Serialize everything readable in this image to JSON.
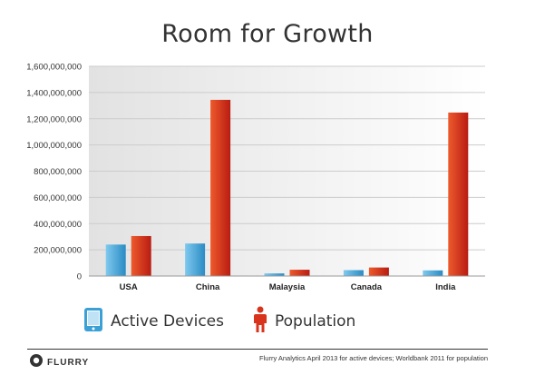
{
  "colors": {
    "active": "#3aa0d6",
    "population": "#d8331c",
    "grid": "#cccccc"
  },
  "legend": {
    "active_label": "Active Devices",
    "population_label": "Population"
  },
  "footer": {
    "logo": "FLURRY",
    "source": "Flurry Analytics April 2013 for active devices; Worldbank 2011 for population"
  },
  "chart_data": {
    "type": "bar",
    "title": "Room for Growth",
    "xlabel": "",
    "ylabel": "",
    "categories": [
      "USA",
      "China",
      "Malaysia",
      "Canada",
      "India"
    ],
    "series": [
      {
        "name": "Active Devices",
        "values": [
          240000000,
          248000000,
          20000000,
          45000000,
          43000000
        ]
      },
      {
        "name": "Population",
        "values": [
          305000000,
          1344000000,
          48000000,
          65000000,
          1247000000
        ]
      }
    ],
    "yticks": [
      {
        "value": 0,
        "label": "0"
      },
      {
        "value": 200000000,
        "label": "200,000,000"
      },
      {
        "value": 400000000,
        "label": "400,000,000"
      },
      {
        "value": 600000000,
        "label": "600,000,000"
      },
      {
        "value": 800000000,
        "label": "800,000,000"
      },
      {
        "value": 1000000000,
        "label": "1,000,000,000"
      },
      {
        "value": 1200000000,
        "label": "1,200,000,000"
      },
      {
        "value": 1400000000,
        "label": "1,400,000,000"
      },
      {
        "value": 1600000000,
        "label": "1,600,000,000"
      }
    ],
    "ylim": [
      0,
      1600000000
    ],
    "grid": true,
    "legend_position": "bottom-left"
  }
}
